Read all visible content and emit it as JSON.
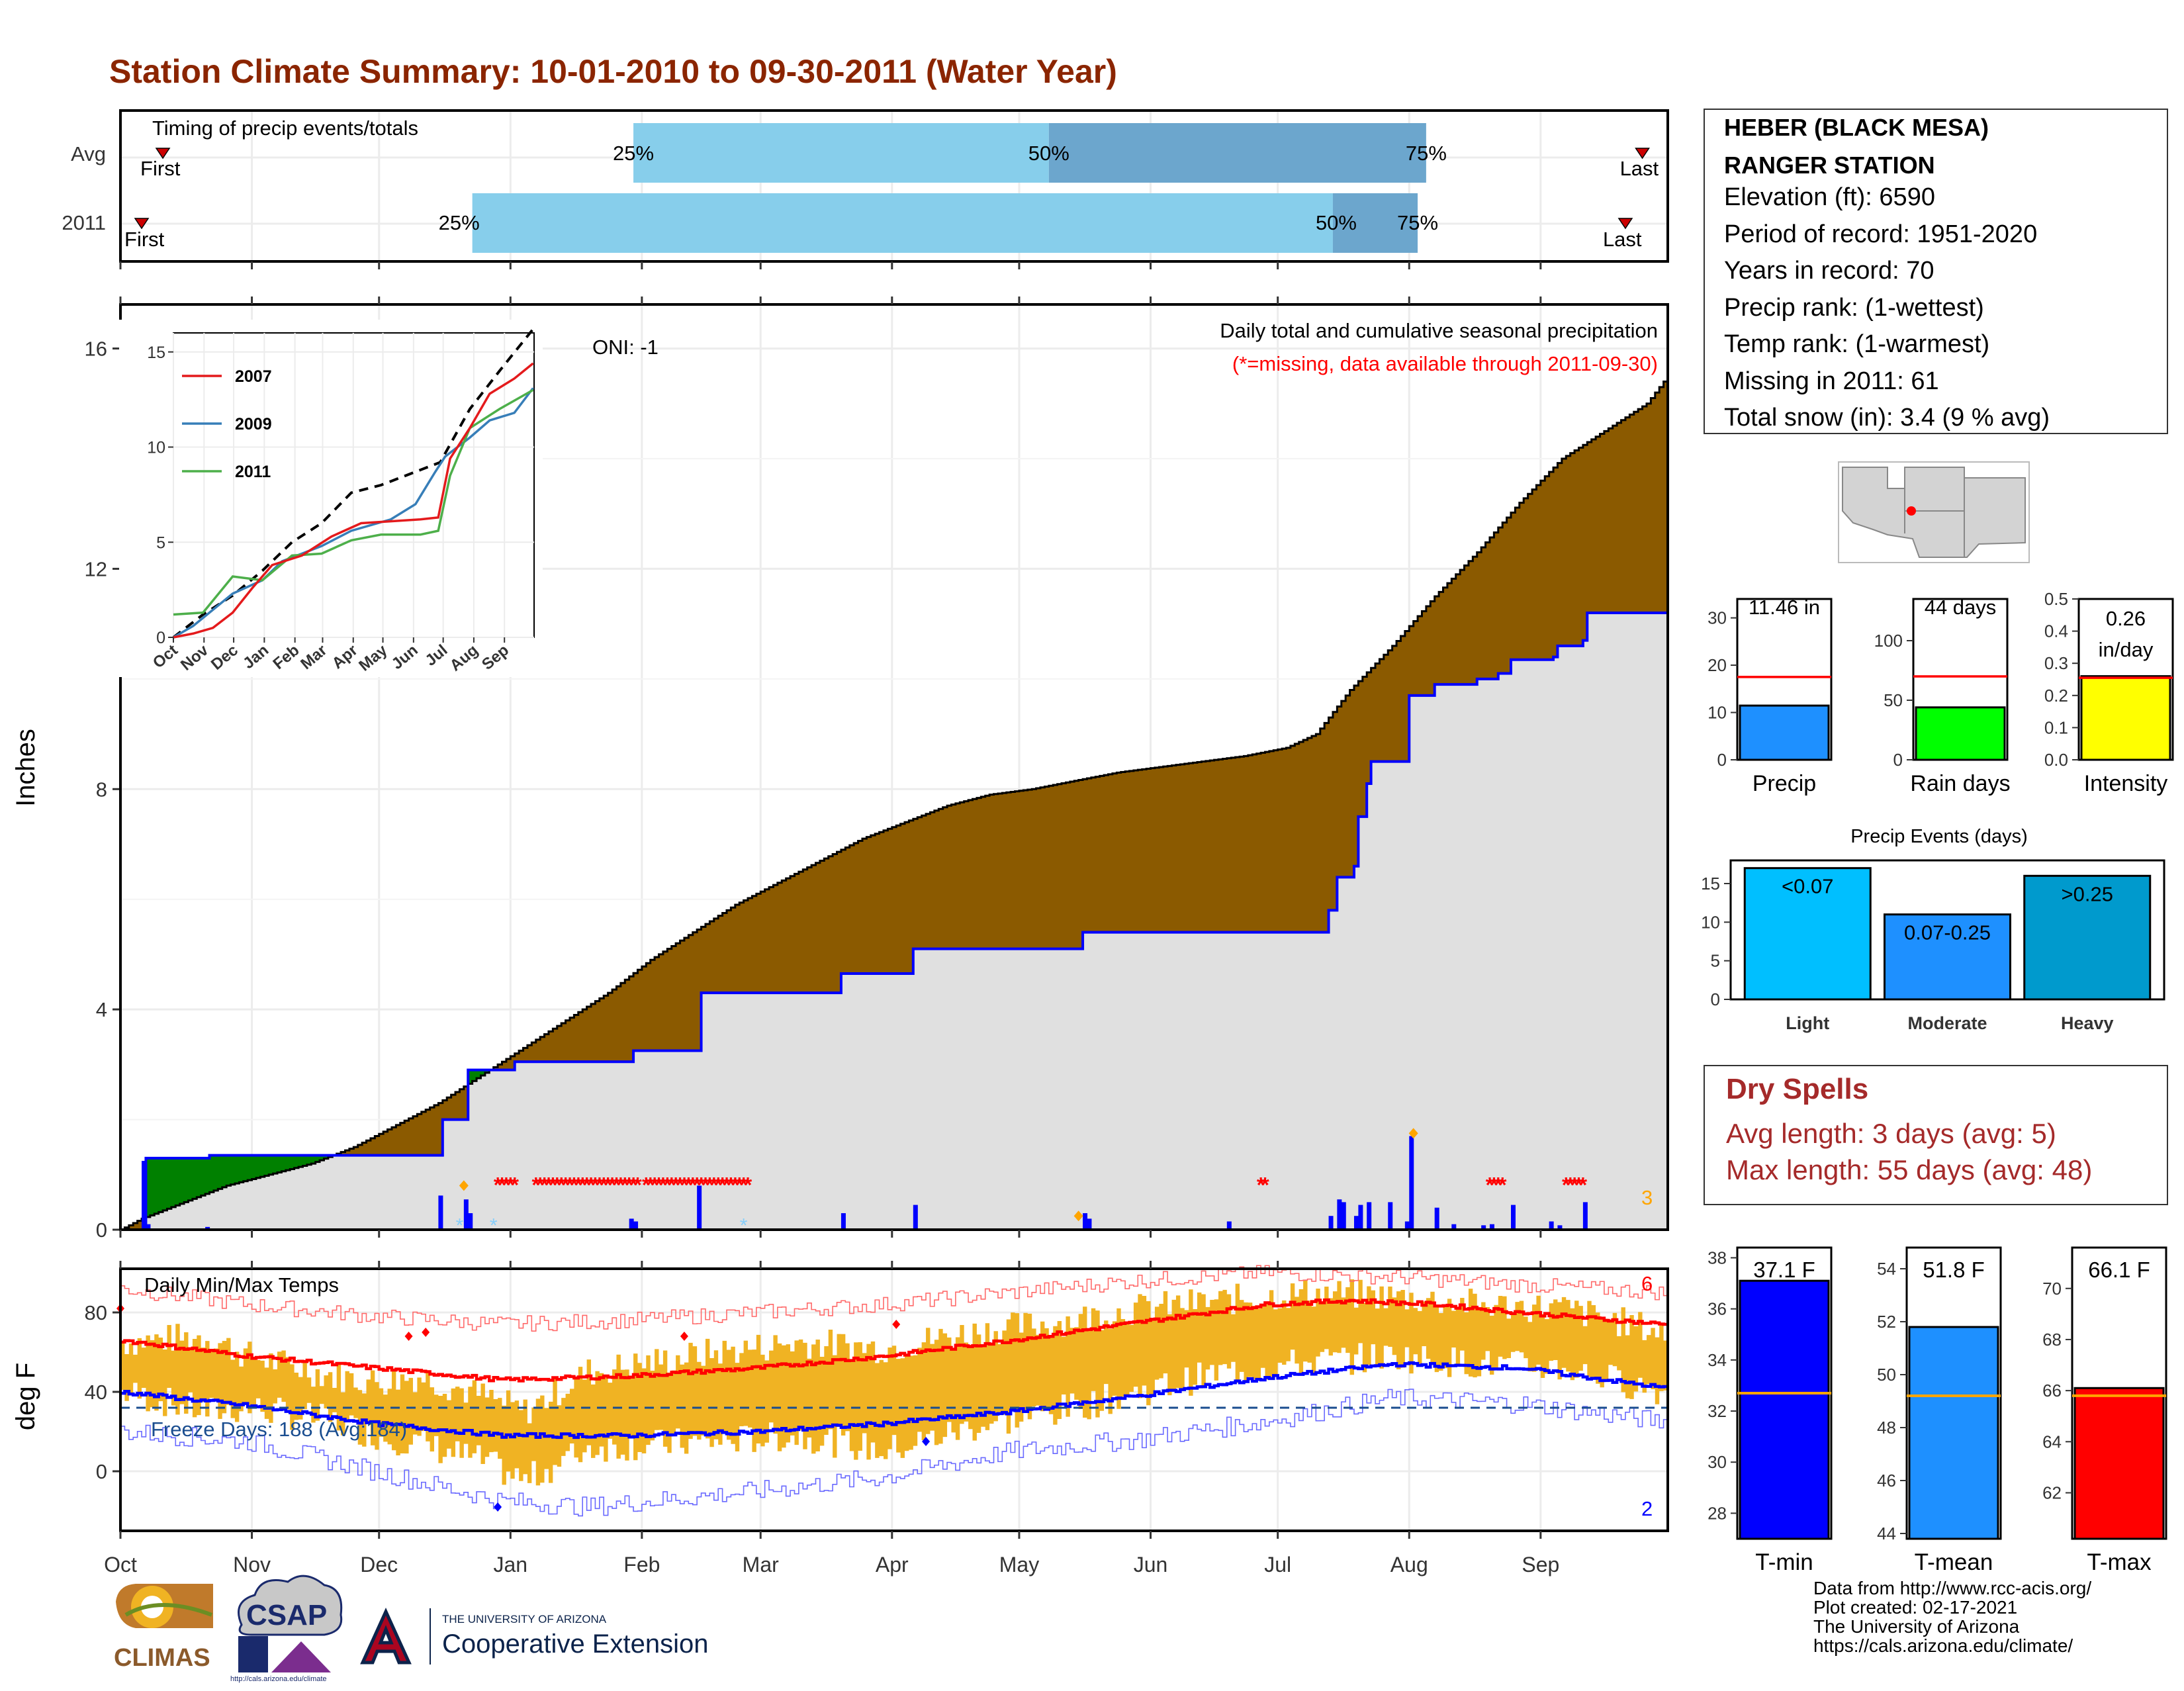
{
  "title": "Station Climate Summary: 10-01-2010 to 09-30-2011 (Water Year)",
  "colors": {
    "title": "#8B2500",
    "precip_avg_fill": "#8B5A00",
    "precip_year_fill": "#E0E0E0",
    "green_fill": "#008000",
    "cumulative_line": "#0000FF",
    "tmax": "#FF0000",
    "tmin": "#0000FF",
    "range_bars": "#F0B323",
    "missing": "#FF0000"
  },
  "timing_panel": {
    "title": "Timing of precip events/totals",
    "rows": [
      "Avg",
      "2011"
    ],
    "first_label": "First",
    "last_label": "Last",
    "avg": {
      "first_day": 10,
      "pct25_day": 121,
      "pct50_day": 219,
      "pct75_day": 308,
      "last_day": 359
    },
    "year": {
      "first_day": 5,
      "pct25_day": 83,
      "pct50_day": 286,
      "pct75_day": 306,
      "last_day": 355
    },
    "pct_labels": [
      "25%",
      "50%",
      "75%"
    ]
  },
  "precip_panel": {
    "ylabel": "Inches",
    "annotation_oni": "ONI: -1",
    "annotation_main": "Daily total and cumulative seasonal precipitation",
    "annotation_missing": "(*=missing, data available through 2011-09-30)",
    "ylim": [
      0,
      16.8
    ],
    "yticks": [
      0,
      4,
      8,
      12,
      16
    ],
    "avg_cumulative": [
      [
        0,
        0
      ],
      [
        5,
        0.2
      ],
      [
        15,
        0.5
      ],
      [
        25,
        0.8
      ],
      [
        35,
        1.0
      ],
      [
        45,
        1.2
      ],
      [
        55,
        1.5
      ],
      [
        65,
        1.9
      ],
      [
        75,
        2.3
      ],
      [
        85,
        2.8
      ],
      [
        95,
        3.3
      ],
      [
        105,
        3.8
      ],
      [
        115,
        4.3
      ],
      [
        125,
        4.9
      ],
      [
        135,
        5.4
      ],
      [
        145,
        5.9
      ],
      [
        155,
        6.3
      ],
      [
        165,
        6.7
      ],
      [
        175,
        7.1
      ],
      [
        185,
        7.4
      ],
      [
        195,
        7.7
      ],
      [
        205,
        7.9
      ],
      [
        215,
        8.0
      ],
      [
        225,
        8.15
      ],
      [
        235,
        8.3
      ],
      [
        245,
        8.4
      ],
      [
        255,
        8.5
      ],
      [
        265,
        8.6
      ],
      [
        275,
        8.75
      ],
      [
        282,
        9.0
      ],
      [
        290,
        9.8
      ],
      [
        300,
        10.6
      ],
      [
        310,
        11.5
      ],
      [
        320,
        12.3
      ],
      [
        330,
        13.2
      ],
      [
        340,
        14.0
      ],
      [
        350,
        14.5
      ],
      [
        360,
        15.0
      ],
      [
        364,
        15.4
      ]
    ],
    "year_cumulative": [
      [
        0,
        0
      ],
      [
        5,
        0
      ],
      [
        6,
        1.3
      ],
      [
        20,
        1.3
      ],
      [
        21,
        1.35
      ],
      [
        75,
        1.35
      ],
      [
        76,
        2.0
      ],
      [
        81,
        2.0
      ],
      [
        82,
        2.9
      ],
      [
        92,
        2.9
      ],
      [
        93,
        3.05
      ],
      [
        120,
        3.05
      ],
      [
        121,
        3.25
      ],
      [
        136,
        3.25
      ],
      [
        137,
        4.3
      ],
      [
        169,
        4.3
      ],
      [
        170,
        4.65
      ],
      [
        186,
        4.65
      ],
      [
        187,
        5.1
      ],
      [
        226,
        5.1
      ],
      [
        227,
        5.4
      ],
      [
        284,
        5.4
      ],
      [
        285,
        5.8
      ],
      [
        287,
        6.4
      ],
      [
        291,
        6.6
      ],
      [
        292,
        7.5
      ],
      [
        294,
        8.1
      ],
      [
        295,
        8.5
      ],
      [
        303,
        8.5
      ],
      [
        304,
        9.7
      ],
      [
        310,
        9.9
      ],
      [
        320,
        10.0
      ],
      [
        325,
        10.1
      ],
      [
        328,
        10.35
      ],
      [
        338,
        10.4
      ],
      [
        339,
        10.6
      ],
      [
        345,
        10.7
      ],
      [
        346,
        11.2
      ],
      [
        364,
        11.2
      ]
    ],
    "daily_bars": [
      [
        5,
        1.25
      ],
      [
        6,
        0.1
      ],
      [
        20,
        0.05
      ],
      [
        75,
        0.62
      ],
      [
        81,
        0.55
      ],
      [
        82,
        0.3
      ],
      [
        120,
        0.2
      ],
      [
        121,
        0.15
      ],
      [
        136,
        0.8
      ],
      [
        170,
        0.3
      ],
      [
        187,
        0.45
      ],
      [
        227,
        0.3
      ],
      [
        228,
        0.2
      ],
      [
        261,
        0.15
      ],
      [
        285,
        0.25
      ],
      [
        287,
        0.55
      ],
      [
        288,
        0.5
      ],
      [
        291,
        0.25
      ],
      [
        292,
        0.45
      ],
      [
        294,
        0.5
      ],
      [
        299,
        0.5
      ],
      [
        303,
        0.15
      ],
      [
        304,
        1.7
      ],
      [
        310,
        0.4
      ],
      [
        314,
        0.1
      ],
      [
        321,
        0.08
      ],
      [
        323,
        0.1
      ],
      [
        328,
        0.45
      ],
      [
        337,
        0.15
      ],
      [
        339,
        0.08
      ],
      [
        345,
        0.5
      ]
    ],
    "snow_marks": [
      [
        80,
        0.1
      ],
      [
        88,
        0.1
      ],
      [
        147,
        0.1
      ]
    ],
    "orange_marks": [
      [
        81,
        0.8
      ],
      [
        226,
        0.25
      ],
      [
        305,
        1.75
      ]
    ],
    "missing_runs": [
      [
        89,
        93
      ],
      [
        98,
        122
      ],
      [
        124,
        148
      ],
      [
        269,
        270
      ],
      [
        323,
        326
      ],
      [
        341,
        345
      ]
    ],
    "right_label": "3"
  },
  "inset": {
    "series": [
      {
        "name": "2007",
        "color": "#E41A1C"
      },
      {
        "name": "2009",
        "color": "#377EB8"
      },
      {
        "name": "2011",
        "color": "#4DAF4A"
      }
    ],
    "yticks": [
      0,
      5,
      10,
      15
    ],
    "ylim": [
      0,
      16
    ],
    "months": [
      "Oct",
      "Nov",
      "Dec",
      "Jan",
      "Feb",
      "Mar",
      "Apr",
      "May",
      "Jun",
      "Jul",
      "Aug",
      "Sep"
    ],
    "avg_curve": [
      [
        0,
        0
      ],
      [
        30,
        1.2
      ],
      [
        60,
        2.2
      ],
      [
        90,
        3.5
      ],
      [
        120,
        5.0
      ],
      [
        150,
        6.0
      ],
      [
        180,
        7.6
      ],
      [
        210,
        8.0
      ],
      [
        240,
        8.6
      ],
      [
        270,
        9.2
      ],
      [
        300,
        12.0
      ],
      [
        330,
        14.0
      ],
      [
        364,
        16.2
      ]
    ],
    "curve_2007": [
      [
        0,
        0
      ],
      [
        20,
        0.2
      ],
      [
        40,
        0.5
      ],
      [
        60,
        1.3
      ],
      [
        80,
        2.6
      ],
      [
        100,
        3.8
      ],
      [
        130,
        4.3
      ],
      [
        160,
        5.3
      ],
      [
        190,
        6.0
      ],
      [
        220,
        6.1
      ],
      [
        250,
        6.2
      ],
      [
        268,
        6.3
      ],
      [
        280,
        9.4
      ],
      [
        300,
        11.0
      ],
      [
        320,
        12.8
      ],
      [
        345,
        13.6
      ],
      [
        364,
        14.4
      ]
    ],
    "curve_2009": [
      [
        0,
        0
      ],
      [
        20,
        0.6
      ],
      [
        60,
        2.3
      ],
      [
        90,
        3.0
      ],
      [
        110,
        4.0
      ],
      [
        150,
        4.8
      ],
      [
        180,
        5.6
      ],
      [
        220,
        6.2
      ],
      [
        245,
        7.0
      ],
      [
        265,
        8.7
      ],
      [
        275,
        9.5
      ],
      [
        300,
        10.5
      ],
      [
        320,
        11.4
      ],
      [
        345,
        11.8
      ],
      [
        364,
        13.1
      ]
    ],
    "curve_2011": [
      [
        0,
        1.2
      ],
      [
        30,
        1.3
      ],
      [
        60,
        3.2
      ],
      [
        90,
        3.0
      ],
      [
        120,
        4.3
      ],
      [
        150,
        4.4
      ],
      [
        180,
        5.1
      ],
      [
        210,
        5.4
      ],
      [
        250,
        5.4
      ],
      [
        268,
        5.6
      ],
      [
        280,
        8.5
      ],
      [
        300,
        11.0
      ],
      [
        330,
        12.0
      ],
      [
        364,
        13.0
      ]
    ]
  },
  "temp_panel": {
    "ylabel": "deg F",
    "title": "Daily Min/Max Temps",
    "freeze_label": "Freeze Days: 188 (Avg:184)",
    "freeze_line": 32,
    "ylim": [
      -30,
      102
    ],
    "yticks": [
      0,
      40,
      80
    ],
    "tmax_avg": [
      [
        0,
        66
      ],
      [
        30,
        58
      ],
      [
        60,
        52
      ],
      [
        90,
        46
      ],
      [
        120,
        48
      ],
      [
        150,
        52
      ],
      [
        180,
        58
      ],
      [
        210,
        66
      ],
      [
        240,
        75
      ],
      [
        270,
        84
      ],
      [
        290,
        86
      ],
      [
        310,
        84
      ],
      [
        330,
        80
      ],
      [
        364,
        74
      ]
    ],
    "tmin_avg": [
      [
        0,
        40
      ],
      [
        30,
        33
      ],
      [
        60,
        24
      ],
      [
        90,
        18
      ],
      [
        120,
        18
      ],
      [
        150,
        20
      ],
      [
        180,
        24
      ],
      [
        210,
        30
      ],
      [
        240,
        38
      ],
      [
        270,
        47
      ],
      [
        300,
        54
      ],
      [
        330,
        52
      ],
      [
        364,
        42
      ]
    ],
    "tmax_daily_upper": [
      [
        0,
        92
      ],
      [
        30,
        84
      ],
      [
        60,
        78
      ],
      [
        90,
        74
      ],
      [
        120,
        76
      ],
      [
        150,
        80
      ],
      [
        180,
        84
      ],
      [
        210,
        90
      ],
      [
        240,
        96
      ],
      [
        270,
        100
      ],
      [
        300,
        98
      ],
      [
        330,
        94
      ],
      [
        364,
        90
      ]
    ],
    "tmin_daily_lower": [
      [
        0,
        20
      ],
      [
        30,
        15
      ],
      [
        60,
        0
      ],
      [
        90,
        -15
      ],
      [
        110,
        -18
      ],
      [
        150,
        -10
      ],
      [
        180,
        -3
      ],
      [
        210,
        10
      ],
      [
        240,
        16
      ],
      [
        270,
        25
      ],
      [
        300,
        37
      ],
      [
        330,
        34
      ],
      [
        364,
        25
      ]
    ],
    "highs": [
      [
        0,
        65
      ],
      [
        20,
        68
      ],
      [
        30,
        58
      ],
      [
        50,
        48
      ],
      [
        60,
        45
      ],
      [
        70,
        48
      ],
      [
        85,
        38
      ],
      [
        95,
        30
      ],
      [
        110,
        50
      ],
      [
        140,
        60
      ],
      [
        160,
        65
      ],
      [
        180,
        62
      ],
      [
        200,
        70
      ],
      [
        220,
        75
      ],
      [
        240,
        82
      ],
      [
        260,
        86
      ],
      [
        280,
        90
      ],
      [
        300,
        88
      ],
      [
        320,
        84
      ],
      [
        340,
        82
      ],
      [
        364,
        70
      ]
    ],
    "lows": [
      [
        0,
        40
      ],
      [
        20,
        30
      ],
      [
        30,
        32
      ],
      [
        50,
        25
      ],
      [
        60,
        18
      ],
      [
        70,
        14
      ],
      [
        85,
        5
      ],
      [
        95,
        -5
      ],
      [
        110,
        12
      ],
      [
        140,
        15
      ],
      [
        160,
        18
      ],
      [
        180,
        10
      ],
      [
        200,
        22
      ],
      [
        220,
        30
      ],
      [
        240,
        40
      ],
      [
        260,
        50
      ],
      [
        280,
        55
      ],
      [
        300,
        58
      ],
      [
        320,
        54
      ],
      [
        340,
        52
      ],
      [
        364,
        40
      ]
    ],
    "record_high_marks": [
      [
        0,
        82
      ],
      [
        68,
        68
      ],
      [
        72,
        70
      ],
      [
        133,
        68
      ],
      [
        183,
        74
      ]
    ],
    "record_low_marks": [
      [
        89,
        -18
      ],
      [
        190,
        15
      ]
    ],
    "right_top_label": "6",
    "right_bottom_label": "2"
  },
  "month_ticks": [
    "Oct",
    "Nov",
    "Dec",
    "Jan",
    "Feb",
    "Mar",
    "Apr",
    "May",
    "Jun",
    "Jul",
    "Aug",
    "Sep"
  ],
  "month_days": [
    0,
    31,
    61,
    92,
    123,
    151,
    182,
    212,
    243,
    273,
    304,
    335
  ],
  "station_box": {
    "line1": "HEBER (BLACK MESA)",
    "line2": "RANGER STATION",
    "elevation": "Elevation (ft): 6590",
    "period": "Period of record: 1951-2020",
    "years": "Years in record: 70",
    "precip_rank": "Precip rank:  (1-wettest)",
    "temp_rank": "Temp rank:  (1-warmest)",
    "missing": "Missing in 2011: 61",
    "snow": "Total snow (in): 3.4 (9 % avg)"
  },
  "small_bars": [
    {
      "label": "Precip",
      "value_label": "11.46 in",
      "value": 11.46,
      "avg": 17.5,
      "ylim": [
        0,
        34
      ],
      "yticks": [
        0,
        10,
        20,
        30
      ],
      "color": "#1E90FF"
    },
    {
      "label": "Rain days",
      "value_label": "44 days",
      "value": 44,
      "avg": 70,
      "ylim": [
        0,
        135
      ],
      "yticks": [
        0,
        50,
        100
      ],
      "color": "#00FF00"
    },
    {
      "label": "Intensity",
      "value_label": "0.26 in/day",
      "value": 0.26,
      "avg": 0.255,
      "ylim": [
        0,
        0.5
      ],
      "yticks": [
        0.0,
        0.1,
        0.2,
        0.3,
        0.4,
        0.5
      ],
      "color": "#FFFF00"
    }
  ],
  "events": {
    "title": "Precip Events (days)",
    "categories": [
      "Light",
      "Moderate",
      "Heavy"
    ],
    "labels": [
      "<0.07",
      "0.07-0.25",
      ">0.25"
    ],
    "values": [
      17,
      11,
      16
    ],
    "ylim": [
      0,
      18
    ],
    "yticks": [
      0,
      5,
      10,
      15
    ],
    "colors": [
      "#00BFFF",
      "#1E90FF",
      "#009ACD"
    ]
  },
  "dry_spells": {
    "title": "Dry Spells",
    "avg_line": "Avg length: 3 days (avg: 5)",
    "max_line": "Max length: 55 days (avg: 48)",
    "color": "#A52A2A"
  },
  "temp_bars": [
    {
      "label": "T-min",
      "value_label": "37.1 F",
      "value": 37.1,
      "avg": 32.7,
      "ylim": [
        27,
        38.4
      ],
      "yticks": [
        28,
        30,
        32,
        34,
        36,
        38
      ],
      "color": "#0000FF"
    },
    {
      "label": "T-mean",
      "value_label": "51.8 F",
      "value": 51.8,
      "avg": 49.2,
      "ylim": [
        43.8,
        54.8
      ],
      "yticks": [
        44,
        46,
        48,
        50,
        52,
        54
      ],
      "color": "#1E90FF"
    },
    {
      "label": "T-max",
      "value_label": "66.1 F",
      "value": 66.1,
      "avg": 65.8,
      "ylim": [
        60.2,
        71.6
      ],
      "yticks": [
        62,
        64,
        66,
        68,
        70
      ],
      "color": "#FF0000"
    }
  ],
  "logos": {
    "climas": "CLIMAS",
    "csap": "CSAP",
    "csap_url": "http://cals.arizona.edu/climate",
    "ua_line1": "THE UNIVERSITY OF ARIZONA",
    "ua_line2": "Cooperative Extension"
  },
  "footer": [
    "Data from http://www.rcc-acis.org/",
    "Plot created: 02-17-2021",
    "The University of Arizona",
    "https://cals.arizona.edu/climate/"
  ]
}
